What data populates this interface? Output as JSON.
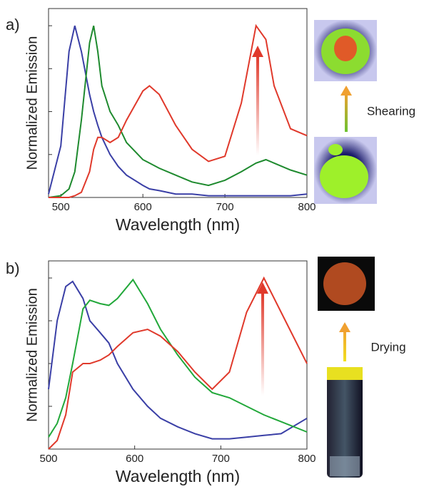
{
  "chart_data": [
    {
      "type": "line",
      "panel_label": "a)",
      "annotation": "Shearing",
      "xlabel": "Wavelength (nm)",
      "ylabel": "Normalized Emission",
      "xlim": [
        485,
        800
      ],
      "xticks": [
        500,
        600,
        700,
        800
      ],
      "ylim": [
        0,
        1.1
      ],
      "yticks": [
        0.25,
        0.5,
        0.75,
        1
      ],
      "x": [
        485,
        500,
        510,
        517,
        525,
        535,
        540,
        545,
        550,
        560,
        570,
        580,
        600,
        608,
        620,
        640,
        660,
        680,
        700,
        720,
        738,
        750,
        760,
        780,
        800
      ],
      "series": [
        {
          "color": "#3a3fa6",
          "values": [
            0.02,
            0.3,
            0.85,
            1.0,
            0.85,
            0.6,
            0.5,
            0.42,
            0.35,
            0.25,
            0.18,
            0.13,
            0.07,
            0.05,
            0.04,
            0.02,
            0.02,
            0.01,
            0.01,
            0.01,
            0.01,
            0.01,
            0.01,
            0.01,
            0.02
          ]
        },
        {
          "color": "#1e8a2e",
          "values": [
            0,
            0.01,
            0.05,
            0.15,
            0.45,
            0.9,
            1.0,
            0.85,
            0.65,
            0.5,
            0.42,
            0.32,
            0.22,
            0.2,
            0.17,
            0.13,
            0.09,
            0.07,
            0.1,
            0.15,
            0.2,
            0.22,
            0.2,
            0.16,
            0.13
          ]
        },
        {
          "color": "#e0392b",
          "values": [
            0,
            0,
            0,
            0.01,
            0.03,
            0.15,
            0.28,
            0.35,
            0.35,
            0.32,
            0.35,
            0.45,
            0.62,
            0.65,
            0.6,
            0.42,
            0.28,
            0.21,
            0.24,
            0.55,
            1.0,
            0.92,
            0.65,
            0.4,
            0.36
          ]
        }
      ]
    },
    {
      "type": "line",
      "panel_label": "b)",
      "annotation": "Drying",
      "xlabel": "Wavelength (nm)",
      "ylabel": "Normalized Emission",
      "xlim": [
        500,
        800
      ],
      "xticks": [
        500,
        600,
        700,
        800
      ],
      "ylim": [
        0,
        1.1
      ],
      "yticks": [
        0.25,
        0.5,
        0.75,
        1
      ],
      "x": [
        500,
        510,
        520,
        528,
        540,
        548,
        560,
        570,
        580,
        598,
        615,
        630,
        650,
        670,
        690,
        710,
        730,
        750,
        770,
        800
      ],
      "series": [
        {
          "color": "#3a3fa6",
          "values": [
            0.35,
            0.75,
            0.95,
            0.98,
            0.88,
            0.75,
            0.68,
            0.62,
            0.5,
            0.35,
            0.25,
            0.18,
            0.13,
            0.09,
            0.06,
            0.06,
            0.07,
            0.08,
            0.09,
            0.18
          ]
        },
        {
          "color": "#22a83a",
          "values": [
            0.07,
            0.15,
            0.3,
            0.5,
            0.82,
            0.87,
            0.85,
            0.84,
            0.88,
            0.99,
            0.85,
            0.7,
            0.55,
            0.42,
            0.33,
            0.3,
            0.25,
            0.2,
            0.16,
            0.1
          ]
        },
        {
          "color": "#e0392b",
          "values": [
            0,
            0.05,
            0.2,
            0.45,
            0.5,
            0.5,
            0.52,
            0.55,
            0.6,
            0.68,
            0.7,
            0.66,
            0.57,
            0.45,
            0.35,
            0.45,
            0.8,
            1.0,
            0.8,
            0.5
          ]
        }
      ]
    }
  ]
}
